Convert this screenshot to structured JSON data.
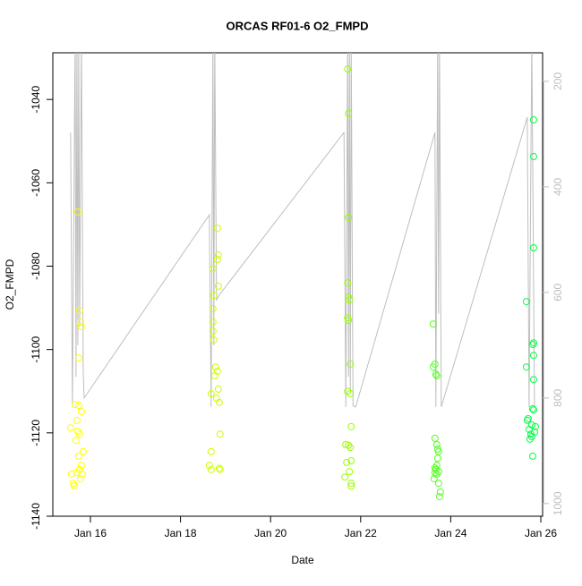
{
  "chart_data": {
    "type": "scatter",
    "title": "ORCAS RF01-6 O2_FMPD",
    "xlabel": "Date",
    "ylabel": "O2_FMPD",
    "xlim": [
      15.165,
      26.04
    ],
    "ylim": [
      -1140,
      -1028.8
    ],
    "y2lim": [
      1024,
      146
    ],
    "xticks": [
      {
        "value": 16,
        "label": "Jan 16"
      },
      {
        "value": 18,
        "label": "Jan 18"
      },
      {
        "value": 20,
        "label": "Jan 20"
      },
      {
        "value": 22,
        "label": "Jan 22"
      },
      {
        "value": 24,
        "label": "Jan 24"
      },
      {
        "value": 26,
        "label": "Jan 26"
      }
    ],
    "yticks": [
      -1140,
      -1120,
      -1100,
      -1080,
      -1060,
      -1040
    ],
    "y2ticks": [
      200,
      400,
      600,
      800,
      1000
    ],
    "y2color": "#bebebe",
    "series": [
      {
        "color": "#ffff00",
        "x": [
          15.56,
          15.58,
          15.62,
          15.64,
          15.66,
          15.68,
          15.7,
          15.72,
          15.74,
          15.74,
          15.72,
          15.76,
          15.78,
          15.8,
          15.82,
          15.8,
          15.76,
          15.74,
          15.78,
          15.84,
          15.7,
          15.76,
          15.8
        ],
        "values": [
          -1118.8,
          -1129.9,
          -1132.1,
          -1132.7,
          -1113.2,
          -1121.8,
          -1117.0,
          -1119.6,
          -1113.4,
          -1102.0,
          -1067.0,
          -1090.6,
          -1093.4,
          -1114.9,
          -1129.9,
          -1127.8,
          -1128.8,
          -1125.6,
          -1131.0,
          -1124.5,
          -1129.5,
          -1120.3,
          -1094.5
        ]
      },
      {
        "color": "#ccff00",
        "x": [
          18.68,
          18.88,
          18.68,
          18.64,
          18.68,
          18.74,
          18.72,
          18.72,
          18.74,
          18.78,
          18.76,
          18.82,
          18.8,
          18.84,
          18.86,
          18.84,
          18.82,
          18.72,
          18.82,
          18.84,
          18.72,
          18.88,
          18.86
        ],
        "values": [
          -1110.6,
          -1120.3,
          -1124.5,
          -1127.8,
          -1128.8,
          -1087.0,
          -1090.2,
          -1093.4,
          -1097.7,
          -1104.2,
          -1106.3,
          -1105.2,
          -1111.7,
          -1109.5,
          -1112.7,
          -1077.3,
          -1078.4,
          -1080.6,
          -1070.9,
          -1084.8,
          -1095.6,
          -1128.8,
          -1128.5
        ]
      },
      {
        "color": "#99ff00",
        "x": [
          21.71,
          21.73,
          21.73,
          21.71,
          21.73,
          21.75,
          21.71,
          21.73,
          21.77,
          21.71,
          21.77,
          21.79,
          21.67,
          21.77,
          21.69,
          21.75,
          21.79,
          21.65,
          21.79,
          21.73,
          21.79
        ],
        "values": [
          -1032.7,
          -1043.4,
          -1068.3,
          -1084.0,
          -1087.4,
          -1088.1,
          -1092.4,
          -1093.0,
          -1103.5,
          -1110.0,
          -1110.6,
          -1118.5,
          -1122.8,
          -1123.5,
          -1127.1,
          -1129.3,
          -1132.1,
          -1130.6,
          -1126.7,
          -1123.0,
          -1132.8
        ]
      },
      {
        "color": "#55ff22",
        "x": [
          23.61,
          23.61,
          23.65,
          23.67,
          23.69,
          23.65,
          23.69,
          23.71,
          23.69,
          23.65,
          23.73,
          23.67,
          23.69,
          23.63,
          23.73,
          23.77,
          23.75,
          23.71,
          23.73,
          23.65
        ],
        "values": [
          -1093.9,
          -1104.2,
          -1103.5,
          -1105.9,
          -1106.3,
          -1121.3,
          -1122.8,
          -1123.9,
          -1127.8,
          -1128.4,
          -1129.3,
          -1128.8,
          -1129.9,
          -1131.0,
          -1132.1,
          -1134.2,
          -1135.3,
          -1126.1,
          -1124.5,
          -1129.6
        ]
      },
      {
        "color": "#00ff44",
        "x": [
          25.84,
          25.84,
          25.84,
          25.68,
          25.84,
          25.82,
          25.84,
          25.68,
          25.84,
          25.82,
          25.84,
          25.72,
          25.7,
          25.8,
          25.88,
          25.74,
          25.86,
          25.78,
          25.8,
          25.82,
          25.76
        ],
        "values": [
          -1044.9,
          -1053.7,
          -1075.6,
          -1088.5,
          -1098.4,
          -1098.8,
          -1101.4,
          -1104.2,
          -1107.2,
          -1114.2,
          -1114.5,
          -1116.6,
          -1117.0,
          -1118.1,
          -1118.5,
          -1119.2,
          -1119.8,
          -1120.3,
          -1120.9,
          -1125.6,
          -1121.5
        ]
      },
      {
        "type": "line",
        "axis": "y2",
        "color": "#bebebe",
        "x": [
          15.56,
          15.6,
          15.66,
          15.68,
          15.7,
          15.72,
          15.74,
          15.76,
          15.8,
          15.84,
          15.86,
          18.64,
          18.68,
          18.72,
          18.74,
          18.76,
          18.8,
          18.86,
          21.63,
          21.67,
          21.71,
          21.73,
          21.75,
          21.77,
          21.79,
          21.83,
          21.89,
          23.65,
          23.67,
          23.71,
          23.73,
          23.75,
          23.79,
          25.7,
          25.74,
          25.8,
          25.86
        ],
        "values": [
          297,
          817,
          120,
          760,
          120,
          700,
          120,
          665,
          120,
          750,
          800,
          453,
          817,
          120,
          700,
          120,
          614,
          605,
          297,
          817,
          120,
          760,
          120,
          790,
          120,
          815,
          817,
          297,
          817,
          120,
          640,
          120,
          817,
          268,
          817,
          120,
          817
        ]
      }
    ]
  }
}
